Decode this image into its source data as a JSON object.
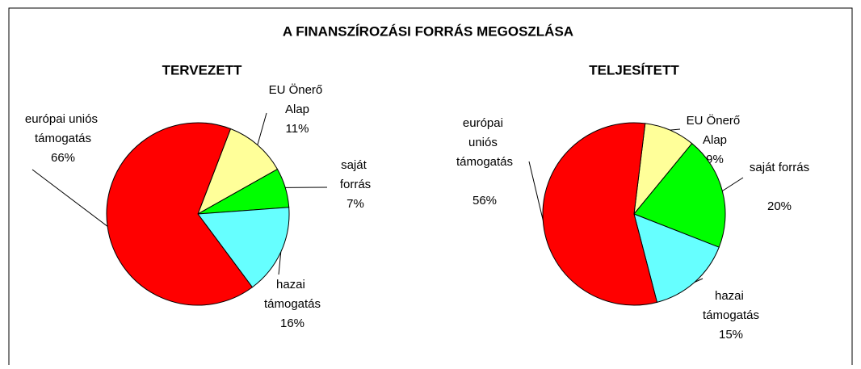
{
  "title": "A FINANSZÍROZÁSI FORRÁS MEGOSZLÁSA",
  "chart_data": [
    {
      "type": "pie",
      "title": "TERVEZETT",
      "categories": [
        "EU Önerő Alap",
        "saját forrás",
        "hazai támogatás",
        "európai uniós támogatás"
      ],
      "values": [
        11,
        7,
        16,
        66
      ],
      "value_labels": [
        "11%",
        "7%",
        "16%",
        "66%"
      ],
      "colors": [
        "#ffff99",
        "#00ff00",
        "#66ffff",
        "#ff0000"
      ]
    },
    {
      "type": "pie",
      "title": "TELJESÍTETT",
      "categories": [
        "EU Önerő Alap",
        "saját forrás",
        "hazai támogatás",
        "európai uniós támogatás"
      ],
      "values": [
        9,
        20,
        15,
        56
      ],
      "value_labels": [
        "9%",
        "20%",
        "15%",
        "56%"
      ],
      "colors": [
        "#ffff99",
        "#00ff00",
        "#66ffff",
        "#ff0000"
      ]
    }
  ]
}
